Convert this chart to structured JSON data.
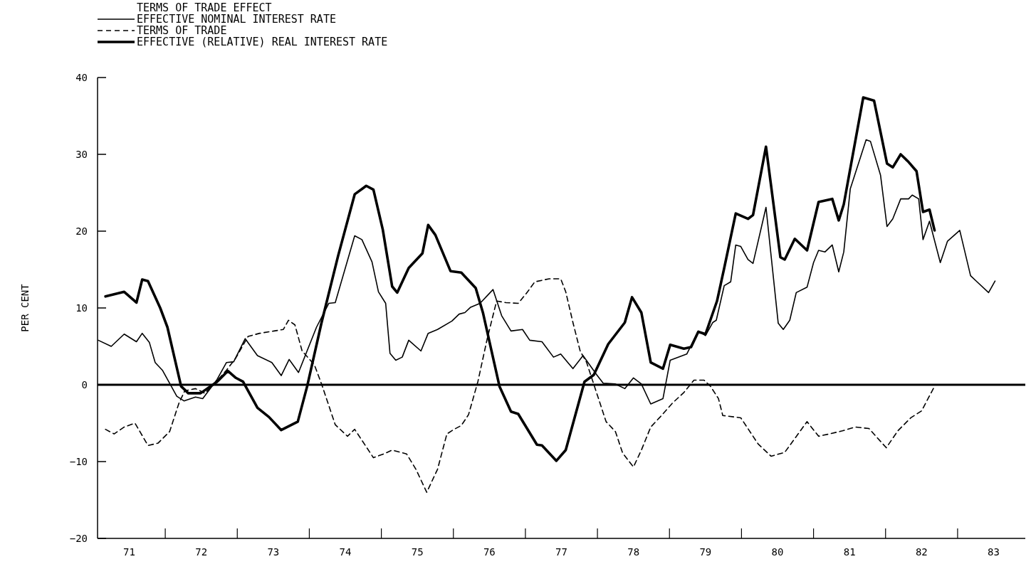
{
  "chart_data": {
    "type": "line",
    "title": "TERMS OF TRADE EFFECT",
    "ylabel": "PER CENT",
    "xlim": [
      70.56,
      83.44
    ],
    "xticks": [
      71,
      {
        "value": 71.5,
        "label": null
      },
      72,
      {
        "value": 72.5,
        "label": null
      },
      73,
      {
        "value": 73.5,
        "label": null
      },
      74,
      {
        "value": 74.5,
        "label": null
      },
      75,
      {
        "value": 75.5,
        "label": null
      },
      76,
      {
        "value": 76.5,
        "label": null
      },
      77,
      {
        "value": 77.5,
        "label": null
      },
      78,
      {
        "value": 78.5,
        "label": null
      },
      79,
      {
        "value": 79.5,
        "label": null
      },
      80,
      {
        "value": 80.5,
        "label": null
      },
      81,
      {
        "value": 81.5,
        "label": null
      },
      82,
      {
        "value": 82.5,
        "label": null
      },
      83
    ],
    "ylim": [
      -20,
      40
    ],
    "yticks": [
      -20,
      -10,
      0,
      10,
      20,
      30,
      40
    ],
    "grid": false,
    "legend": "top left",
    "marker": "none",
    "ref_lines": [
      {
        "axis": "y",
        "value": 0,
        "color": "#000000",
        "line_style": "solid"
      }
    ],
    "series": [
      {
        "name": "EFFECTIVE NOMINAL INTEREST RATE",
        "color": "#000000",
        "line_style": "solid",
        "x": [
          70.57,
          70.75,
          70.93,
          71.1,
          71.18,
          71.28,
          71.36,
          71.46,
          71.66,
          71.76,
          71.92,
          72.02,
          72.22,
          72.35,
          72.45,
          72.61,
          72.78,
          72.98,
          73.11,
          73.22,
          73.35,
          73.6,
          73.77,
          73.86,
          74.13,
          74.23,
          74.37,
          74.46,
          74.56,
          74.62,
          74.7,
          74.79,
          74.88,
          75.05,
          75.15,
          75.28,
          75.48,
          75.58,
          75.66,
          75.74,
          75.87,
          76.05,
          76.17,
          76.3,
          76.46,
          76.56,
          76.73,
          76.89,
          76.99,
          77.16,
          77.3,
          77.49,
          77.58,
          77.75,
          77.88,
          78.0,
          78.11,
          78.24,
          78.41,
          78.51,
          78.74,
          78.9,
          79.0,
          79.1,
          79.15,
          79.26,
          79.35,
          79.42,
          79.49,
          79.59,
          79.66,
          79.84,
          80.01,
          80.08,
          80.17,
          80.26,
          80.41,
          80.5,
          80.57,
          80.66,
          80.76,
          80.85,
          80.92,
          81.01,
          81.23,
          81.29,
          81.43,
          81.52,
          81.6,
          81.71,
          81.82,
          81.87,
          81.96,
          82.02,
          82.11,
          82.26,
          82.36,
          82.53,
          82.68,
          82.77,
          82.93,
          83.02
        ],
        "values": [
          5.8,
          5.0,
          6.6,
          5.6,
          6.7,
          5.5,
          2.9,
          1.9,
          -1.5,
          -2.1,
          -1.6,
          -1.8,
          0.7,
          2.9,
          3.0,
          6.0,
          3.8,
          2.9,
          1.2,
          3.3,
          1.6,
          7.5,
          10.6,
          10.7,
          19.4,
          18.9,
          16.0,
          12.1,
          10.6,
          4.1,
          3.2,
          3.6,
          5.8,
          4.4,
          6.7,
          7.2,
          8.3,
          9.2,
          9.4,
          10.1,
          10.6,
          12.4,
          9.0,
          7.0,
          7.2,
          5.8,
          5.6,
          3.6,
          4.0,
          2.1,
          3.8,
          1.3,
          0.2,
          0.1,
          -0.5,
          0.9,
          0.1,
          -2.5,
          -1.8,
          3.2,
          4.0,
          7.0,
          6.4,
          8.1,
          8.4,
          12.9,
          13.4,
          18.2,
          18.0,
          16.3,
          15.8,
          23.1,
          8.0,
          7.2,
          8.4,
          12.0,
          12.7,
          15.9,
          17.5,
          17.3,
          18.2,
          14.7,
          17.3,
          25.5,
          31.9,
          31.7,
          27.3,
          20.6,
          21.6,
          24.2,
          24.2,
          24.7,
          24.2,
          18.9,
          21.3,
          15.9,
          18.7,
          20.1,
          14.2,
          13.4,
          12.0,
          13.5
        ]
      },
      {
        "name": "TERMS OF TRADE",
        "color": "#000000",
        "line_style": "dashed",
        "x": [
          70.67,
          70.79,
          70.93,
          71.08,
          71.26,
          71.4,
          71.56,
          71.69,
          71.77,
          71.92,
          72.05,
          72.19,
          72.35,
          72.48,
          72.65,
          72.81,
          73.01,
          73.14,
          73.21,
          73.3,
          73.4,
          73.57,
          73.67,
          73.86,
          74.03,
          74.13,
          74.39,
          74.56,
          74.65,
          74.85,
          74.98,
          75.13,
          75.28,
          75.41,
          75.51,
          75.61,
          75.71,
          75.84,
          75.97,
          76.1,
          76.23,
          76.4,
          76.53,
          76.63,
          76.83,
          76.99,
          77.06,
          77.16,
          77.26,
          77.35,
          77.49,
          77.62,
          77.75,
          77.85,
          78.0,
          78.11,
          78.24,
          78.37,
          78.54,
          78.7,
          78.84,
          78.98,
          79.07,
          79.18,
          79.24,
          79.49,
          79.73,
          79.91,
          80.1,
          80.24,
          80.41,
          80.57,
          80.72,
          80.9,
          81.08,
          81.27,
          81.51,
          81.67,
          81.85,
          82.0,
          82.18
        ],
        "values": [
          -5.8,
          -6.4,
          -5.5,
          -5.0,
          -7.9,
          -7.6,
          -6.1,
          -2.4,
          -0.8,
          -0.5,
          -1.1,
          0.2,
          1.9,
          3.5,
          6.3,
          6.7,
          7.0,
          7.2,
          8.4,
          7.8,
          4.4,
          2.6,
          0.1,
          -5.2,
          -6.7,
          -5.8,
          -9.5,
          -8.9,
          -8.5,
          -9.0,
          -11.0,
          -14.0,
          -11.0,
          -6.4,
          -5.8,
          -5.3,
          -3.9,
          0.4,
          6.0,
          10.9,
          10.7,
          10.6,
          12.1,
          13.4,
          13.8,
          13.8,
          12.1,
          8.1,
          4.4,
          2.9,
          -1.1,
          -4.8,
          -6.1,
          -8.9,
          -10.7,
          -8.5,
          -5.5,
          -4.2,
          -2.4,
          -1.0,
          0.6,
          0.6,
          -0.2,
          -1.8,
          -4.0,
          -4.3,
          -7.7,
          -9.3,
          -8.8,
          -7.0,
          -4.8,
          -6.7,
          -6.4,
          -6.0,
          -5.5,
          -5.7,
          -8.2,
          -6.0,
          -4.3,
          -3.4,
          -0.2
        ]
      },
      {
        "name": "EFFECTIVE (RELATIVE) REAL INTEREST RATE",
        "color": "#000000",
        "line_style": "solid",
        "x": [
          70.67,
          70.93,
          71.1,
          71.18,
          71.26,
          71.43,
          71.53,
          71.72,
          71.82,
          71.99,
          72.22,
          72.37,
          72.48,
          72.58,
          72.78,
          72.94,
          73.11,
          73.34,
          73.47,
          73.67,
          73.9,
          74.13,
          74.29,
          74.39,
          74.52,
          74.65,
          74.72,
          74.88,
          75.07,
          75.15,
          75.25,
          75.46,
          75.61,
          75.81,
          75.91,
          76.14,
          76.3,
          76.4,
          76.66,
          76.73,
          76.93,
          77.06,
          77.32,
          77.45,
          77.65,
          77.88,
          77.98,
          78.11,
          78.24,
          78.41,
          78.51,
          78.7,
          78.8,
          78.9,
          79.0,
          79.16,
          79.26,
          79.42,
          79.59,
          79.66,
          79.84,
          80.04,
          80.1,
          80.24,
          80.41,
          80.57,
          80.76,
          80.85,
          80.92,
          81.19,
          81.34,
          81.52,
          81.6,
          81.71,
          81.82,
          81.93,
          82.02,
          82.11,
          82.18
        ],
        "values": [
          11.5,
          12.1,
          10.7,
          13.7,
          13.5,
          10.0,
          7.5,
          -0.2,
          -1.1,
          -1.1,
          0.4,
          1.8,
          0.9,
          0.4,
          -3.0,
          -4.2,
          -5.9,
          -4.8,
          -0.2,
          8.1,
          16.8,
          24.8,
          25.9,
          25.4,
          20.2,
          12.8,
          12.0,
          15.2,
          17.1,
          20.8,
          19.5,
          14.8,
          14.6,
          12.6,
          9.4,
          -0.2,
          -3.5,
          -3.8,
          -7.8,
          -7.9,
          -9.9,
          -8.5,
          0.4,
          1.3,
          5.3,
          8.1,
          11.4,
          9.4,
          2.9,
          2.1,
          5.2,
          4.7,
          4.9,
          6.9,
          6.6,
          10.9,
          15.2,
          22.3,
          21.6,
          22.1,
          31.0,
          16.6,
          16.3,
          19.0,
          17.5,
          23.8,
          24.2,
          21.4,
          23.5,
          37.4,
          37.0,
          28.8,
          28.3,
          30.0,
          29.0,
          27.8,
          22.5,
          22.8,
          20.1
        ]
      }
    ]
  }
}
